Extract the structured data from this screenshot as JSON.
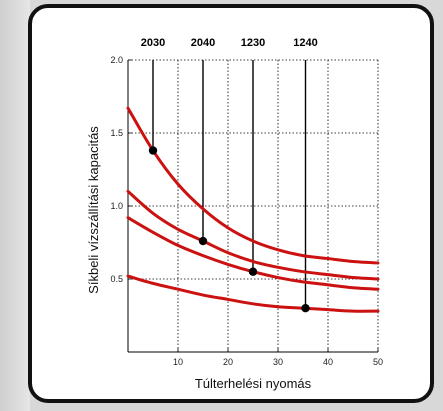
{
  "chart_data": {
    "type": "line",
    "xlabel": "Túlterhelési nyomás",
    "ylabel": "Síkbeli vízszállítási kapacitás",
    "xlim": [
      0,
      50
    ],
    "ylim": [
      0,
      2.0
    ],
    "xticks": [
      10,
      20,
      30,
      40,
      50
    ],
    "yticks": [
      0.5,
      1.0,
      1.5,
      2.0
    ],
    "xtick_labels": [
      "10",
      "20",
      "30",
      "40",
      "50"
    ],
    "ytick_labels": [
      "0.5",
      "1.0",
      "1.5",
      "2.0"
    ],
    "grid": true,
    "colors": {
      "curve": "#cc1111",
      "marker": "#000000",
      "guide": "#000000"
    },
    "series": [
      {
        "name": "2030",
        "x": [
          0,
          5,
          10,
          15,
          20,
          25,
          30,
          35,
          40,
          45,
          50
        ],
        "values": [
          1.67,
          1.38,
          1.15,
          0.98,
          0.85,
          0.76,
          0.7,
          0.66,
          0.64,
          0.62,
          0.61
        ],
        "marker": {
          "x": 5,
          "y": 1.38
        }
      },
      {
        "name": "2040",
        "x": [
          0,
          5,
          10,
          15,
          20,
          25,
          30,
          35,
          40,
          45,
          50
        ],
        "values": [
          1.1,
          0.95,
          0.84,
          0.76,
          0.68,
          0.62,
          0.58,
          0.55,
          0.53,
          0.51,
          0.5
        ],
        "marker": {
          "x": 15,
          "y": 0.76
        }
      },
      {
        "name": "1230",
        "x": [
          0,
          5,
          10,
          15,
          20,
          25,
          30,
          35,
          40,
          45,
          50
        ],
        "values": [
          0.92,
          0.82,
          0.73,
          0.66,
          0.6,
          0.55,
          0.51,
          0.48,
          0.46,
          0.44,
          0.43
        ],
        "marker": {
          "x": 25,
          "y": 0.55
        }
      },
      {
        "name": "1240",
        "x": [
          0,
          5,
          10,
          15,
          20,
          25,
          30,
          35,
          40,
          45,
          50
        ],
        "values": [
          0.52,
          0.47,
          0.43,
          0.39,
          0.36,
          0.33,
          0.31,
          0.3,
          0.29,
          0.28,
          0.28
        ],
        "marker": {
          "x": 35.5,
          "y": 0.3
        }
      }
    ]
  }
}
